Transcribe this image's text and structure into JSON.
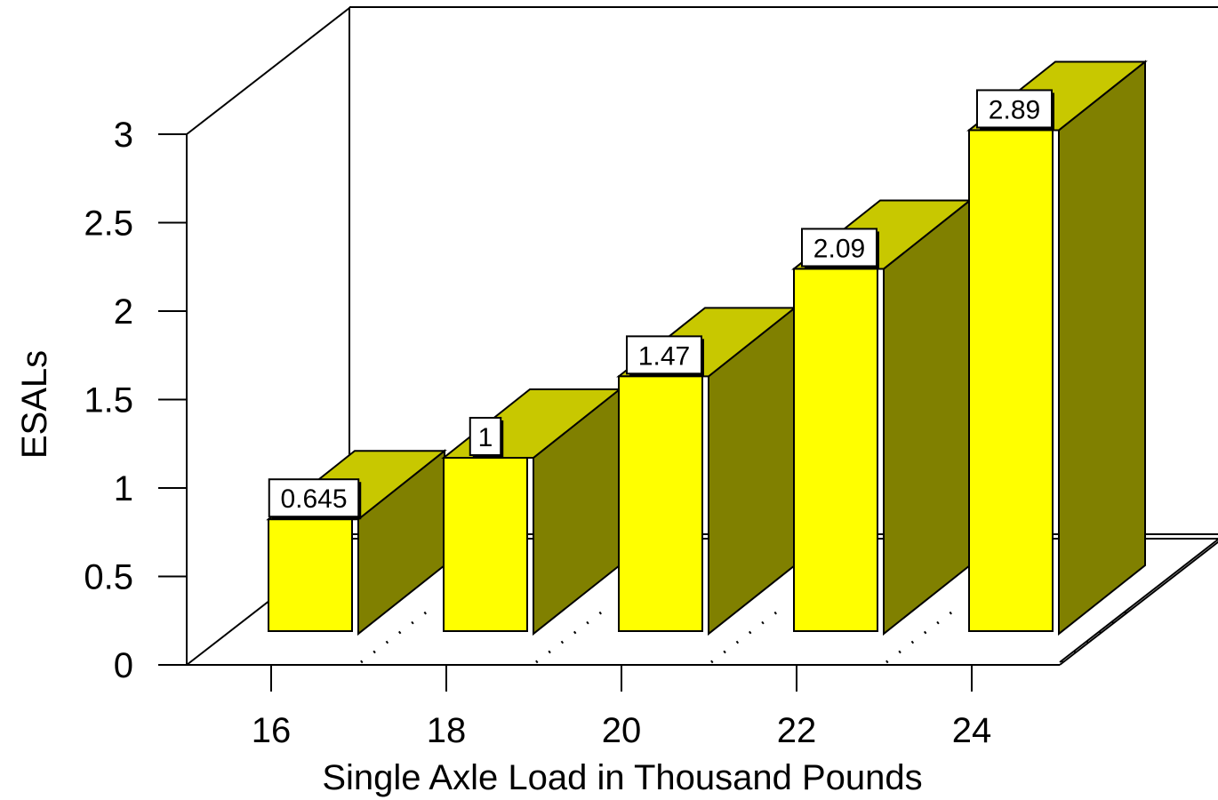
{
  "chart_data": {
    "type": "bar",
    "categories": [
      "16",
      "18",
      "20",
      "22",
      "24"
    ],
    "values": [
      0.645,
      1,
      1.47,
      2.09,
      2.89
    ],
    "data_labels": [
      "0.645",
      "1",
      "1.47",
      "2.09",
      "2.89"
    ],
    "xlabel": "Single Axle Load in Thousand Pounds",
    "ylabel": "ESALs",
    "yticks": [
      "0",
      "0.5",
      "1",
      "1.5",
      "2",
      "2.5",
      "3"
    ],
    "ylim": [
      0,
      3
    ],
    "grid": false,
    "legend": "none",
    "style": "3d",
    "colors": {
      "bar_front": "#ffff00",
      "bar_top": "#c8c800",
      "bar_side": "#808000",
      "label_box": "#ffffff",
      "axis": "#000000"
    }
  }
}
